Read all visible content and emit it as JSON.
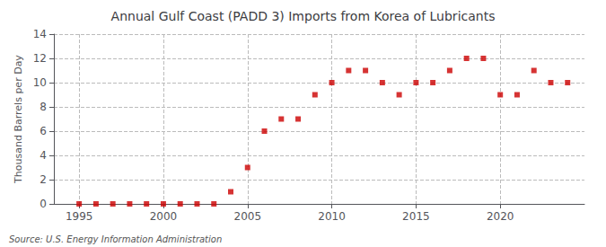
{
  "chart_data": {
    "type": "scatter",
    "title": "Annual Gulf Coast (PADD 3) Imports from Korea of Lubricants",
    "ylabel": "Thousand Barrels per Day",
    "annotation": "Source: U.S. Energy Information Administration",
    "x": [
      1995,
      1996,
      1997,
      1998,
      1999,
      2000,
      2001,
      2002,
      2003,
      2004,
      2005,
      2006,
      2007,
      2008,
      2009,
      2010,
      2011,
      2012,
      2013,
      2014,
      2015,
      2016,
      2017,
      2018,
      2019,
      2020,
      2021,
      2022,
      2023,
      2024
    ],
    "values": [
      0,
      0,
      0,
      0,
      0,
      0,
      0,
      0,
      0,
      1,
      3,
      6,
      7,
      7,
      9,
      10,
      11,
      11,
      10,
      9,
      10,
      10,
      11,
      12,
      12,
      9,
      9,
      11,
      10,
      10
    ],
    "color": "#cc0000",
    "marker": "square",
    "xlim": [
      1993.5,
      2025
    ],
    "xticks": [
      1995,
      2000,
      2005,
      2010,
      2015,
      2020
    ],
    "ylim": [
      0,
      14
    ],
    "yticks": [
      0,
      2,
      4,
      6,
      8,
      10,
      12,
      14
    ],
    "grid": true
  }
}
